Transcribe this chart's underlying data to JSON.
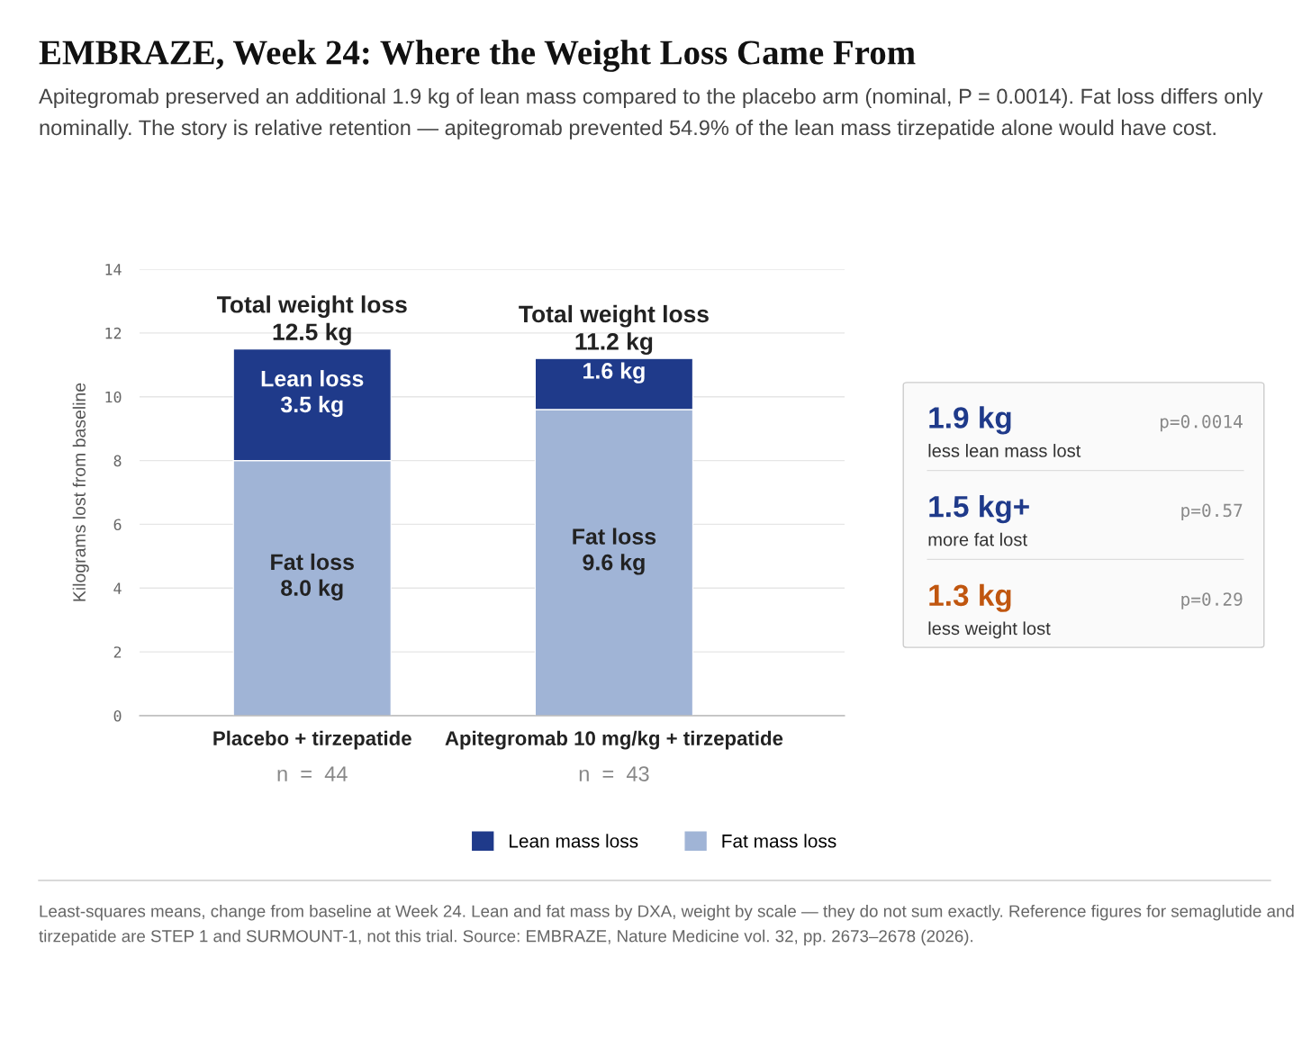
{
  "chart_data": [
    {
      "type": "bar",
      "title": "EMBRAZE, Week 24: Where the Weight Loss Came From",
      "subtitle": "Apitegromab preserved an additional 1.9 kg of lean mass compared to the placebo arm (nominal, P = 0.0014). Fat loss differs only nominally. The story is relative retention — apitegromab prevented 54.9% of the lean mass tirzepatide alone would have cost.",
      "categories": [
        "Placebo + tirzepatide",
        "Apitegromab 10 mg/kg + tirzepatide"
      ],
      "stacked": true,
      "series": [
        {
          "name": "Fat mass loss",
          "color": "#a0b4d6",
          "values": [
            8.0,
            9.6
          ],
          "value_labels": [
            "Fat loss\n8.0 kg",
            "Fat loss\n9.6 kg"
          ]
        },
        {
          "name": "Lean mass loss",
          "color": "#1f3a8a",
          "values": [
            3.5,
            1.6
          ],
          "value_labels": [
            "Lean loss\n3.5 kg",
            "1.6 kg"
          ]
        }
      ],
      "ylabel": "Kilograms lost from baseline",
      "ylim": [
        0,
        14
      ],
      "yticks": [
        0,
        2,
        4,
        6,
        8,
        10,
        12,
        14
      ],
      "grid": "y",
      "legend": "bottom",
      "annotations": [
        "n  =  44",
        "n  =  43",
        {
          "text": "Total weight loss\n12.5 kg",
          "x": "Placebo + tirzepatide",
          "y": 11.5
        },
        {
          "text": "Total weight loss\n11.2 kg",
          "x": "Apitegromab 10 mg/kg + tirzepatide",
          "y": 11.2
        },
        "Least-squares means, change from baseline at Week 24. Lean and fat mass by DXA, weight by scale — they do not sum exactly. Reference figures for semaglutide and tirzepatide are STEP 1 and SURMOUNT-1, not this trial. Source: EMBRAZE, Nature Medicine vol. 32, pp. 2673–2678 (2026)."
      ]
    },
    {
      "type": "other",
      "annotations": [
        "1.9 kg",
        "p=0.0014",
        "less lean mass lost",
        "1.5 kg+",
        "p=0.57",
        "more fat lost",
        "1.3 kg",
        "p=0.29",
        "less weight lost"
      ],
      "colors": [
        "#1f3a8a",
        "#1f3a8a",
        "#c0560f"
      ]
    }
  ]
}
